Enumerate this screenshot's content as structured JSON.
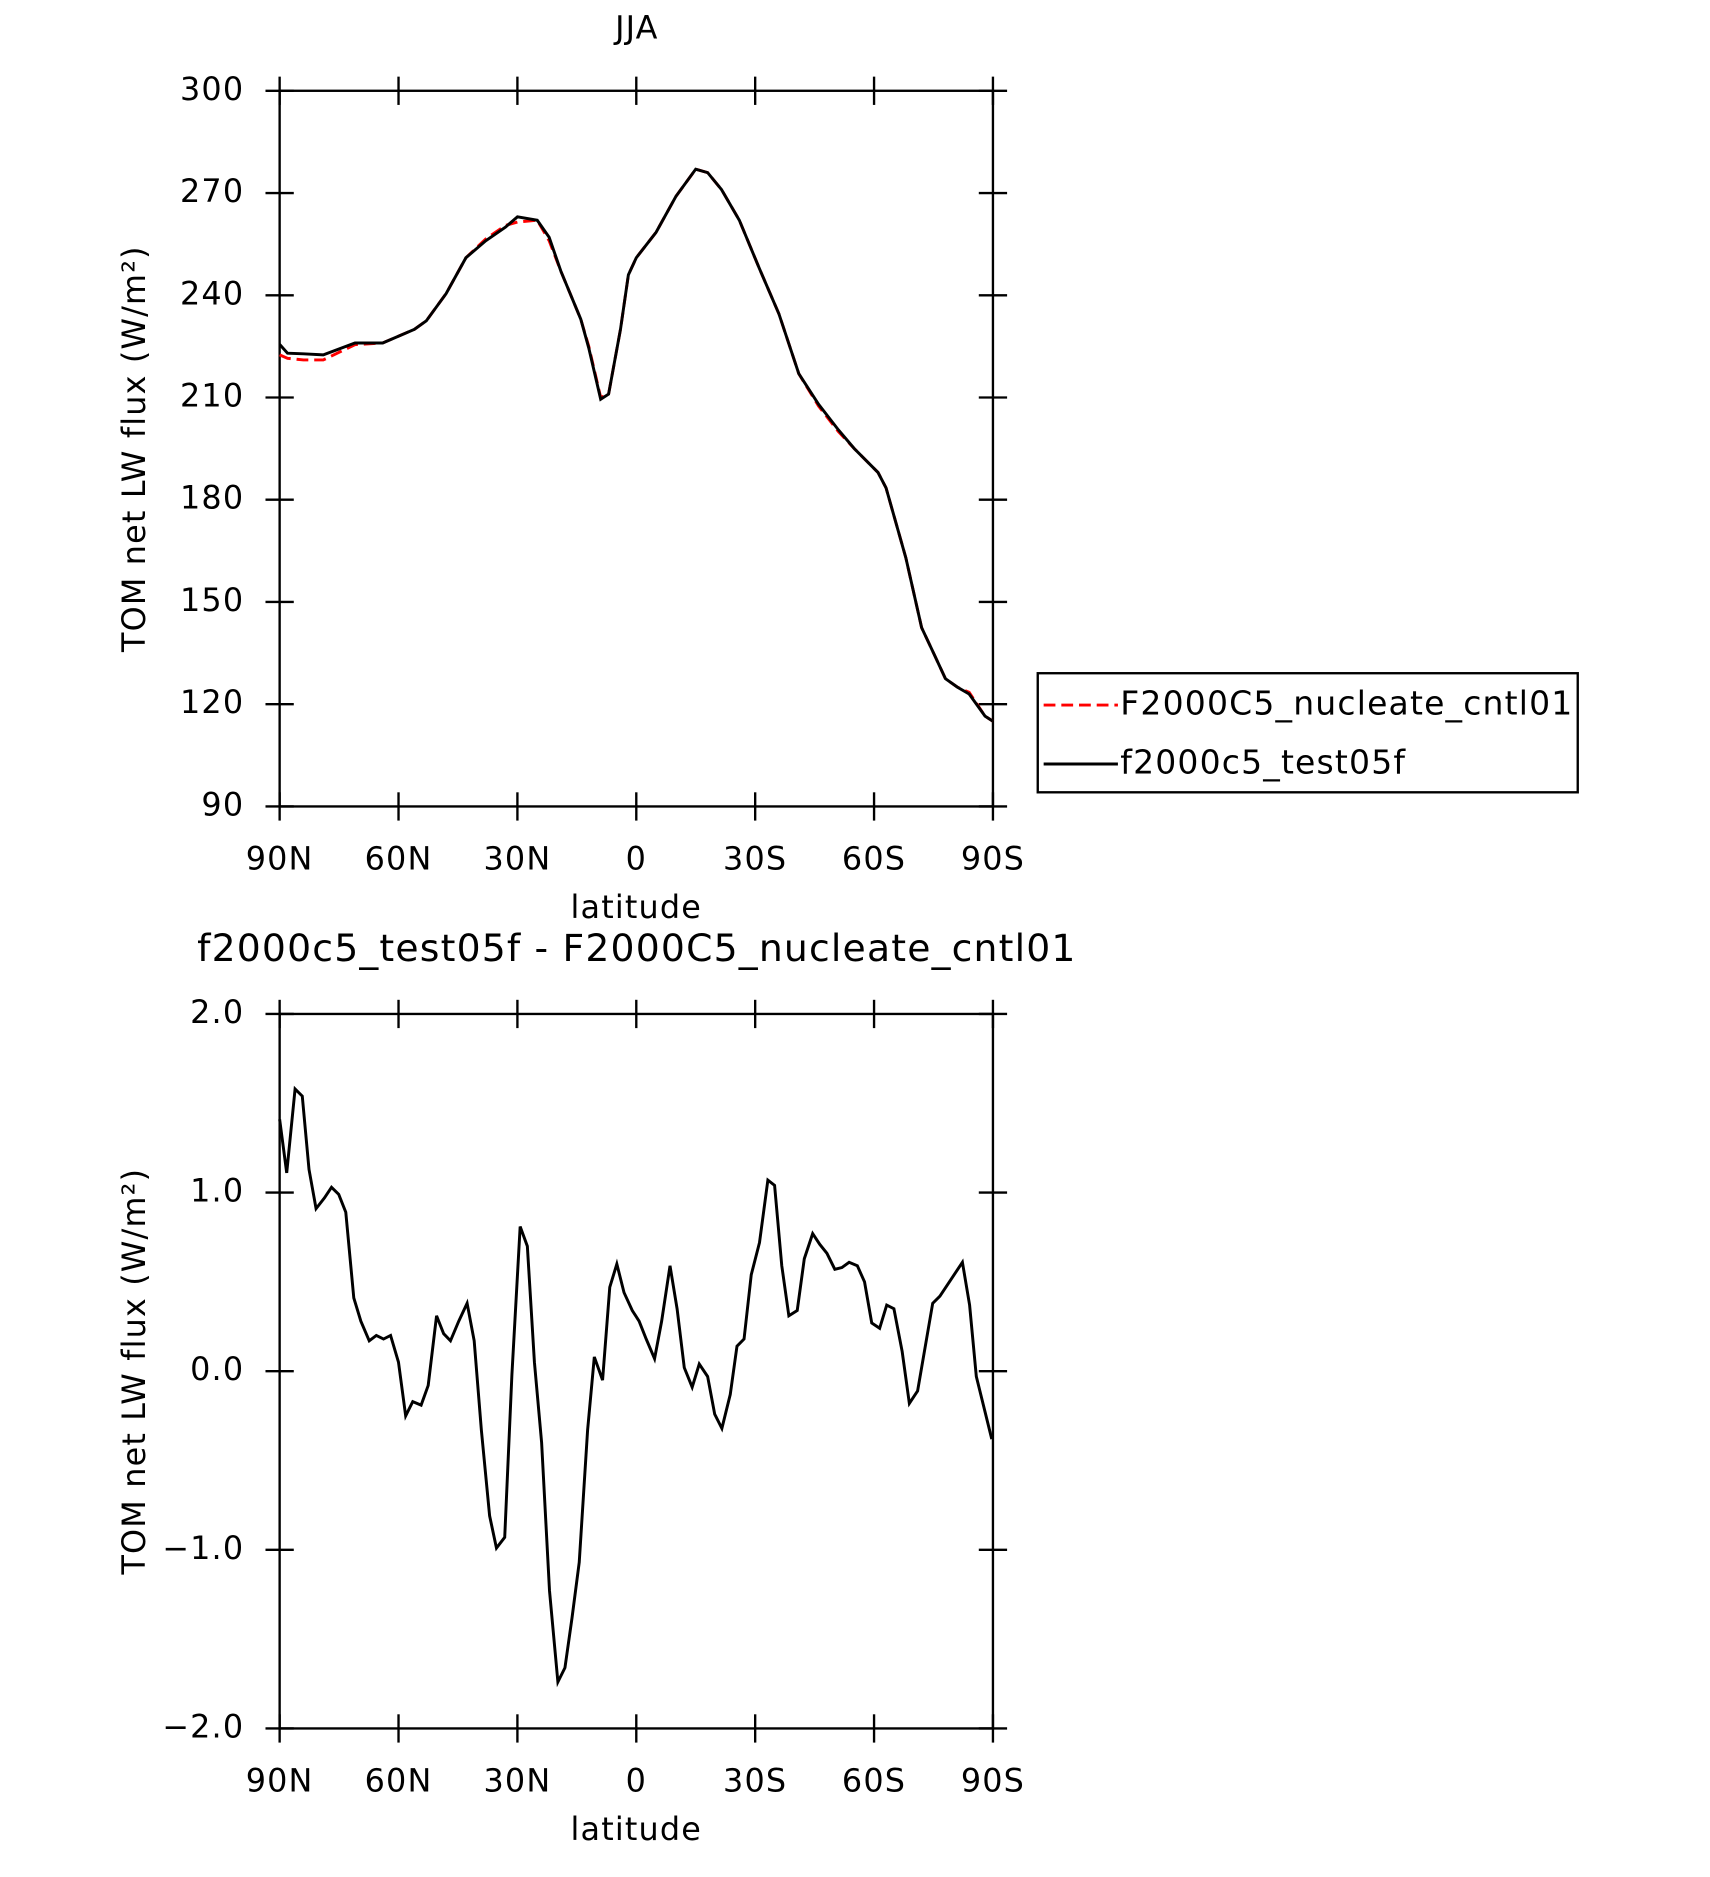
{
  "chart_data": [
    {
      "type": "line",
      "title": "JJA",
      "x_label": "latitude",
      "y_label": "TOM net LW flux (W/m²)",
      "xlim": [
        90,
        -90
      ],
      "xticks": [
        {
          "value": 90,
          "label": "90N"
        },
        {
          "value": 60,
          "label": "60N"
        },
        {
          "value": 30,
          "label": "30N"
        },
        {
          "value": 0,
          "label": "0"
        },
        {
          "value": -30,
          "label": "30S"
        },
        {
          "value": -60,
          "label": "60S"
        },
        {
          "value": -90,
          "label": "90S"
        }
      ],
      "ylim": [
        90,
        300
      ],
      "yticks": [
        90,
        120,
        150,
        180,
        210,
        240,
        270,
        300
      ],
      "legend": "outside-right",
      "x": [
        90,
        88,
        84,
        79,
        71,
        64,
        56,
        53,
        48,
        43,
        38,
        33,
        30,
        25,
        22,
        19,
        14,
        12,
        9,
        7,
        4,
        2,
        0,
        -5,
        -10,
        -15,
        -18,
        -21.5,
        -26,
        -31,
        -36,
        -41,
        -46,
        -51,
        -55,
        -61,
        -63,
        -68,
        -72,
        -75,
        -78,
        -81,
        -84,
        -88,
        -90
      ],
      "series": [
        {
          "name": "F2000C5_nucleate_cntl01",
          "color": "#ff0000",
          "linestyle": "dashed",
          "values": [
            222.5,
            221.5,
            221,
            221,
            225.5,
            226,
            230,
            232.5,
            240.5,
            251,
            256.5,
            260.5,
            261.5,
            262,
            256,
            247,
            233,
            225,
            210,
            211,
            230,
            246,
            251,
            258.5,
            269,
            277,
            276,
            271,
            262,
            248,
            234.5,
            217,
            207.5,
            200,
            195,
            188,
            183.5,
            163,
            142.5,
            135,
            127.5,
            125,
            123.5,
            116.5,
            115
          ]
        },
        {
          "name": "f2000c5_test05f",
          "color": "#000000",
          "linestyle": "solid",
          "values": [
            225.6,
            223,
            222.8,
            222.5,
            226,
            226,
            230,
            232.5,
            240.5,
            251,
            256,
            260,
            263,
            262,
            257,
            247,
            233,
            224.5,
            209.5,
            211,
            230,
            246,
            251,
            258.5,
            269,
            277,
            276,
            271,
            262,
            248,
            234.5,
            217,
            208,
            200.5,
            195,
            188,
            183.5,
            163,
            142.5,
            135,
            127.5,
            125,
            123,
            116.5,
            115
          ]
        }
      ]
    },
    {
      "type": "line",
      "title": "f2000c5_test05f - F2000C5_nucleate_cntl01",
      "x_label": "latitude",
      "y_label": "TOM net LW flux (W/m²)",
      "xlim": [
        90,
        -90
      ],
      "xticks": [
        {
          "value": 90,
          "label": "90N"
        },
        {
          "value": 60,
          "label": "60N"
        },
        {
          "value": 30,
          "label": "30N"
        },
        {
          "value": 0,
          "label": "0"
        },
        {
          "value": -30,
          "label": "30S"
        },
        {
          "value": -60,
          "label": "60S"
        },
        {
          "value": -90,
          "label": "90S"
        }
      ],
      "ylim": [
        -2,
        2
      ],
      "yticks": [
        {
          "value": -2,
          "label": "−2.0"
        },
        {
          "value": -1,
          "label": "−1.0"
        },
        {
          "value": 0,
          "label": "0.0"
        },
        {
          "value": 1,
          "label": "1.0"
        },
        {
          "value": 2,
          "label": "2.0"
        }
      ],
      "x": [
        90,
        88.2,
        86.1,
        84.3,
        82.6,
        80.8,
        78.7,
        76.9,
        75.1,
        73.3,
        71.3,
        69.5,
        67.4,
        65.6,
        63.8,
        62.0,
        60.0,
        58.2,
        56.4,
        54.3,
        52.5,
        50.4,
        48.6,
        46.9,
        44.8,
        42.7,
        40.9,
        39.1,
        37.0,
        35.3,
        33.2,
        31.4,
        29.3,
        27.5,
        25.7,
        23.9,
        21.9,
        19.8,
        18.0,
        16.2,
        14.4,
        12.3,
        10.6,
        8.5,
        6.7,
        4.9,
        3.1,
        1.0,
        -0.7,
        -2.5,
        -4.6,
        -6.4,
        -8.5,
        -10.3,
        -12.1,
        -14.1,
        -15.9,
        -18.0,
        -19.8,
        -21.6,
        -23.7,
        -25.4,
        -27.2,
        -29.0,
        -31.1,
        -33.2,
        -34.9,
        -36.7,
        -38.5,
        -40.6,
        -42.4,
        -44.5,
        -46.3,
        -48.1,
        -50.1,
        -51.9,
        -53.7,
        -55.8,
        -57.6,
        -59.4,
        -61.4,
        -63.2,
        -65.0,
        -67.1,
        -68.9,
        -71.0,
        -74.8,
        -76.6,
        -82.3,
        -84.1,
        -85.8,
        -89.7
      ],
      "series": [
        {
          "name": "f2000c5_test05f",
          "color": "#000000",
          "linestyle": "solid",
          "values": [
            1.41,
            1.11,
            1.58,
            1.54,
            1.13,
            0.91,
            0.97,
            1.03,
            0.99,
            0.89,
            0.41,
            0.28,
            0.17,
            0.2,
            0.18,
            0.2,
            0.05,
            -0.25,
            -0.17,
            -0.19,
            -0.08,
            0.31,
            0.21,
            0.17,
            0.28,
            0.38,
            0.17,
            -0.33,
            -0.81,
            -0.99,
            -0.93,
            -0.02,
            0.81,
            0.7,
            0.05,
            -0.4,
            -1.23,
            -1.74,
            -1.66,
            -1.38,
            -1.07,
            -0.33,
            0.08,
            -0.05,
            0.47,
            0.6,
            0.44,
            0.34,
            0.28,
            0.18,
            0.07,
            0.28,
            0.59,
            0.35,
            0.02,
            -0.09,
            0.04,
            -0.03,
            -0.24,
            -0.32,
            -0.13,
            0.14,
            0.18,
            0.54,
            0.72,
            1.07,
            1.04,
            0.59,
            0.31,
            0.34,
            0.63,
            0.77,
            0.71,
            0.66,
            0.57,
            0.58,
            0.61,
            0.59,
            0.5,
            0.27,
            0.24,
            0.37,
            0.35,
            0.11,
            -0.18,
            -0.11,
            0.38,
            0.42,
            0.61,
            0.37,
            -0.03,
            -0.38
          ]
        }
      ]
    }
  ]
}
